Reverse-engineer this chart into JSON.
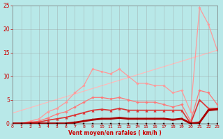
{
  "bg_color": "#b8e8e8",
  "grid_color": "#999999",
  "xlabel": "Vent moyen/en rafales ( km/h )",
  "xlabel_color": "#cc0000",
  "tick_color": "#cc0000",
  "xlim": [
    0,
    23
  ],
  "ylim": [
    0,
    25
  ],
  "xticks": [
    0,
    1,
    2,
    3,
    4,
    5,
    6,
    7,
    8,
    9,
    10,
    11,
    12,
    13,
    14,
    15,
    16,
    17,
    18,
    19,
    20,
    21,
    22,
    23
  ],
  "yticks": [
    0,
    5,
    10,
    15,
    20,
    25
  ],
  "series": [
    {
      "x": [
        0,
        23
      ],
      "y": [
        2.2,
        15.5
      ],
      "color": "#ffbbbb",
      "linewidth": 0.9,
      "marker": null,
      "zorder": 1
    },
    {
      "x": [
        0,
        1,
        2,
        3,
        4,
        5,
        6,
        7,
        8,
        9,
        10,
        11,
        12,
        13,
        14,
        15,
        16,
        17,
        18,
        19,
        20,
        21,
        22,
        23
      ],
      "y": [
        0,
        0,
        0.5,
        1.0,
        2.5,
        3.2,
        4.5,
        6.5,
        8.0,
        11.5,
        11.0,
        10.5,
        11.5,
        10.0,
        8.5,
        8.5,
        8.0,
        8.0,
        6.5,
        7.0,
        2.5,
        24.5,
        21.0,
        15.5
      ],
      "color": "#ff9999",
      "linewidth": 0.9,
      "marker": "D",
      "markersize": 1.8,
      "zorder": 2
    },
    {
      "x": [
        0,
        1,
        2,
        3,
        4,
        5,
        6,
        7,
        8,
        9,
        10,
        11,
        12,
        13,
        14,
        15,
        16,
        17,
        18,
        19,
        20,
        21,
        22,
        23
      ],
      "y": [
        0,
        0,
        0.3,
        0.5,
        1.2,
        2.0,
        2.5,
        3.5,
        4.5,
        5.5,
        5.5,
        5.2,
        5.5,
        5.0,
        4.5,
        4.5,
        4.5,
        4.0,
        3.5,
        4.0,
        0.5,
        7.0,
        6.5,
        4.0
      ],
      "color": "#ff7777",
      "linewidth": 0.9,
      "marker": "D",
      "markersize": 1.8,
      "zorder": 3
    },
    {
      "x": [
        0,
        1,
        2,
        3,
        4,
        5,
        6,
        7,
        8,
        9,
        10,
        11,
        12,
        13,
        14,
        15,
        16,
        17,
        18,
        19,
        20,
        21,
        22,
        23
      ],
      "y": [
        0,
        0,
        0.2,
        0.3,
        0.7,
        1.0,
        1.3,
        1.8,
        2.3,
        2.8,
        3.0,
        2.8,
        3.2,
        2.8,
        2.8,
        2.8,
        2.8,
        2.8,
        2.8,
        2.8,
        0.0,
        5.0,
        3.2,
        3.2
      ],
      "color": "#dd3333",
      "linewidth": 1.2,
      "marker": "^",
      "markersize": 2.5,
      "zorder": 4
    },
    {
      "x": [
        0,
        1,
        2,
        3,
        4,
        5,
        6,
        7,
        8,
        9,
        10,
        11,
        12,
        13,
        14,
        15,
        16,
        17,
        18,
        19,
        20,
        21,
        22,
        23
      ],
      "y": [
        0,
        0,
        0,
        0,
        0,
        0,
        0,
        0.2,
        0.5,
        0.8,
        1.0,
        1.0,
        1.2,
        1.0,
        1.0,
        1.0,
        1.0,
        1.0,
        0.8,
        1.0,
        0.0,
        0.2,
        2.8,
        3.0
      ],
      "color": "#aa0000",
      "linewidth": 2.0,
      "marker": "s",
      "markersize": 2.0,
      "zorder": 5
    },
    {
      "x": [
        0,
        1,
        2,
        3,
        4,
        5,
        6,
        7,
        8,
        9,
        10,
        11,
        12,
        13,
        14,
        15,
        16,
        17,
        18,
        19,
        20,
        21,
        22,
        23
      ],
      "y": [
        0,
        0,
        0,
        0,
        0,
        0,
        0,
        0,
        0,
        0,
        0,
        0,
        0,
        0,
        0,
        0,
        0,
        0,
        0,
        0,
        0,
        0,
        0,
        0
      ],
      "color": "#330000",
      "linewidth": 1.0,
      "marker": "s",
      "markersize": 1.5,
      "zorder": 6
    }
  ]
}
